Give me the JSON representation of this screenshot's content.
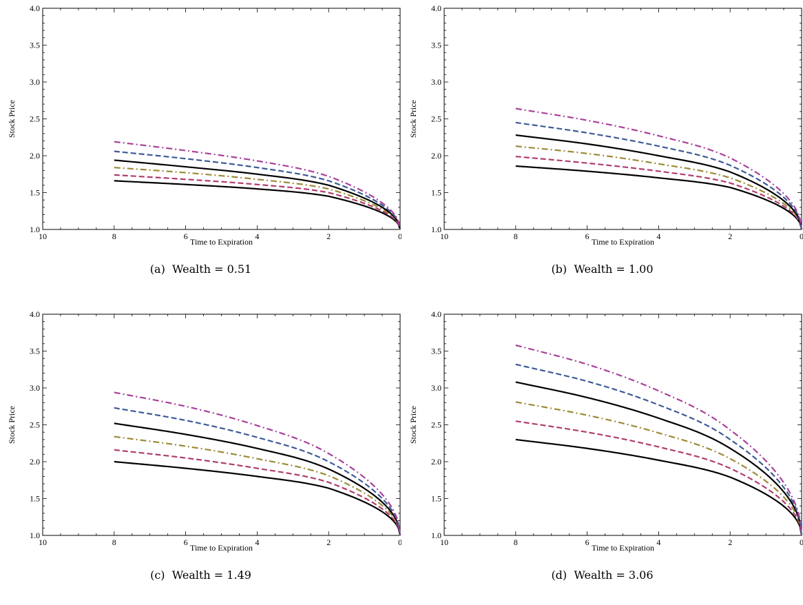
{
  "chart_data": [
    {
      "type": "line",
      "caption": "(a)  Wealth = 0.51",
      "xlabel": "Time to Expiration",
      "ylabel": "Stock Price",
      "xlim": [
        10,
        0
      ],
      "ylim": [
        1.0,
        4.0
      ],
      "xticks": [
        "10",
        "8",
        "6",
        "4",
        "2",
        "0"
      ],
      "yticks": [
        "1.0",
        "1.5",
        "2.0",
        "2.5",
        "3.0",
        "3.5",
        "4.0"
      ],
      "series": [
        {
          "color": "#000000",
          "style": "solid",
          "x": [
            8,
            6,
            4,
            2,
            0
          ],
          "y": [
            1.66,
            1.61,
            1.55,
            1.45,
            1.0
          ]
        },
        {
          "color": "#b03c6e",
          "style": "dashed",
          "x": [
            8,
            6,
            4,
            2,
            0
          ],
          "y": [
            1.74,
            1.68,
            1.61,
            1.5,
            1.0
          ]
        },
        {
          "color": "#9c8a36",
          "style": "dashdot",
          "x": [
            8,
            6,
            4,
            2,
            0
          ],
          "y": [
            1.84,
            1.77,
            1.68,
            1.55,
            1.0
          ]
        },
        {
          "color": "#000000",
          "style": "solid",
          "x": [
            8,
            6,
            4,
            2,
            0
          ],
          "y": [
            1.94,
            1.85,
            1.75,
            1.6,
            1.0
          ]
        },
        {
          "color": "#3c5a96",
          "style": "dashed",
          "x": [
            8,
            6,
            4,
            2,
            0
          ],
          "y": [
            2.06,
            1.96,
            1.84,
            1.66,
            1.0
          ]
        },
        {
          "color": "#a8409a",
          "style": "dashdot",
          "x": [
            8,
            6,
            4,
            2,
            0
          ],
          "y": [
            2.19,
            2.07,
            1.93,
            1.72,
            1.0
          ]
        }
      ]
    },
    {
      "type": "line",
      "caption": "(b)  Wealth = 1.00",
      "xlabel": "Time to Expiration",
      "ylabel": "Stock Price",
      "xlim": [
        10,
        0
      ],
      "ylim": [
        1.0,
        4.0
      ],
      "xticks": [
        "10",
        "8",
        "6",
        "4",
        "2",
        "0"
      ],
      "yticks": [
        "1.0",
        "1.5",
        "2.0",
        "2.5",
        "3.0",
        "3.5",
        "4.0"
      ],
      "series": [
        {
          "color": "#000000",
          "style": "solid",
          "x": [
            8,
            6,
            4,
            2,
            0
          ],
          "y": [
            1.86,
            1.79,
            1.7,
            1.57,
            1.0
          ]
        },
        {
          "color": "#b03c6e",
          "style": "dashed",
          "x": [
            8,
            6,
            4,
            2,
            0
          ],
          "y": [
            1.99,
            1.9,
            1.79,
            1.63,
            1.0
          ]
        },
        {
          "color": "#9c8a36",
          "style": "dashdot",
          "x": [
            8,
            6,
            4,
            2,
            0
          ],
          "y": [
            2.13,
            2.03,
            1.89,
            1.7,
            1.0
          ]
        },
        {
          "color": "#000000",
          "style": "solid",
          "x": [
            8,
            6,
            4,
            2,
            0
          ],
          "y": [
            2.28,
            2.16,
            2.0,
            1.78,
            1.0
          ]
        },
        {
          "color": "#3c5a96",
          "style": "dashed",
          "x": [
            8,
            6,
            4,
            2,
            0
          ],
          "y": [
            2.45,
            2.31,
            2.13,
            1.87,
            1.0
          ]
        },
        {
          "color": "#a8409a",
          "style": "dashdot",
          "x": [
            8,
            6,
            4,
            2,
            0
          ],
          "y": [
            2.64,
            2.48,
            2.27,
            1.97,
            1.0
          ]
        }
      ]
    },
    {
      "type": "line",
      "caption": "(c)  Wealth = 1.49",
      "xlabel": "Time to Expiration",
      "ylabel": "Stock Price",
      "xlim": [
        10,
        0
      ],
      "ylim": [
        1.0,
        4.0
      ],
      "xticks": [
        "10",
        "8",
        "6",
        "4",
        "2",
        "0"
      ],
      "yticks": [
        "1.0",
        "1.5",
        "2.0",
        "2.5",
        "3.0",
        "3.5",
        "4.0"
      ],
      "series": [
        {
          "color": "#000000",
          "style": "solid",
          "x": [
            8,
            6,
            4,
            2,
            0
          ],
          "y": [
            2.0,
            1.91,
            1.8,
            1.64,
            1.0
          ]
        },
        {
          "color": "#b03c6e",
          "style": "dashed",
          "x": [
            8,
            6,
            4,
            2,
            0
          ],
          "y": [
            2.16,
            2.05,
            1.91,
            1.72,
            1.0
          ]
        },
        {
          "color": "#9c8a36",
          "style": "dashdot",
          "x": [
            8,
            6,
            4,
            2,
            0
          ],
          "y": [
            2.34,
            2.21,
            2.04,
            1.81,
            1.0
          ]
        },
        {
          "color": "#000000",
          "style": "solid",
          "x": [
            8,
            6,
            4,
            2,
            0
          ],
          "y": [
            2.52,
            2.37,
            2.18,
            1.9,
            1.0
          ]
        },
        {
          "color": "#3c5a96",
          "style": "dashed",
          "x": [
            8,
            6,
            4,
            2,
            0
          ],
          "y": [
            2.73,
            2.56,
            2.33,
            2.0,
            1.0
          ]
        },
        {
          "color": "#a8409a",
          "style": "dashdot",
          "x": [
            8,
            6,
            4,
            2,
            0
          ],
          "y": [
            2.94,
            2.75,
            2.49,
            2.11,
            1.0
          ]
        }
      ]
    },
    {
      "type": "line",
      "caption": "(d)  Wealth = 3.06",
      "xlabel": "Time to Expiration",
      "ylabel": "Stock Price",
      "xlim": [
        10,
        0
      ],
      "ylim": [
        1.0,
        4.0
      ],
      "xticks": [
        "10",
        "8",
        "6",
        "4",
        "2",
        "0"
      ],
      "yticks": [
        "1.0",
        "1.5",
        "2.0",
        "2.5",
        "3.0",
        "3.5",
        "4.0"
      ],
      "series": [
        {
          "color": "#000000",
          "style": "solid",
          "x": [
            8,
            6,
            4,
            2,
            0
          ],
          "y": [
            2.3,
            2.18,
            2.02,
            1.79,
            1.0
          ]
        },
        {
          "color": "#b03c6e",
          "style": "dashed",
          "x": [
            8,
            6,
            4,
            2,
            0
          ],
          "y": [
            2.55,
            2.4,
            2.2,
            1.91,
            1.0
          ]
        },
        {
          "color": "#9c8a36",
          "style": "dashdot",
          "x": [
            8,
            6,
            4,
            2,
            0
          ],
          "y": [
            2.81,
            2.63,
            2.39,
            2.04,
            1.0
          ]
        },
        {
          "color": "#000000",
          "style": "solid",
          "x": [
            8,
            6,
            4,
            2,
            0
          ],
          "y": [
            3.08,
            2.87,
            2.59,
            2.18,
            1.0
          ]
        },
        {
          "color": "#3c5a96",
          "style": "dashed",
          "x": [
            8,
            6,
            4,
            2,
            0
          ],
          "y": [
            3.32,
            3.09,
            2.77,
            2.3,
            1.0
          ]
        },
        {
          "color": "#a8409a",
          "style": "dashdot",
          "x": [
            8,
            6,
            4,
            2,
            0
          ],
          "y": [
            3.58,
            3.32,
            2.96,
            2.43,
            1.0
          ]
        }
      ]
    }
  ]
}
